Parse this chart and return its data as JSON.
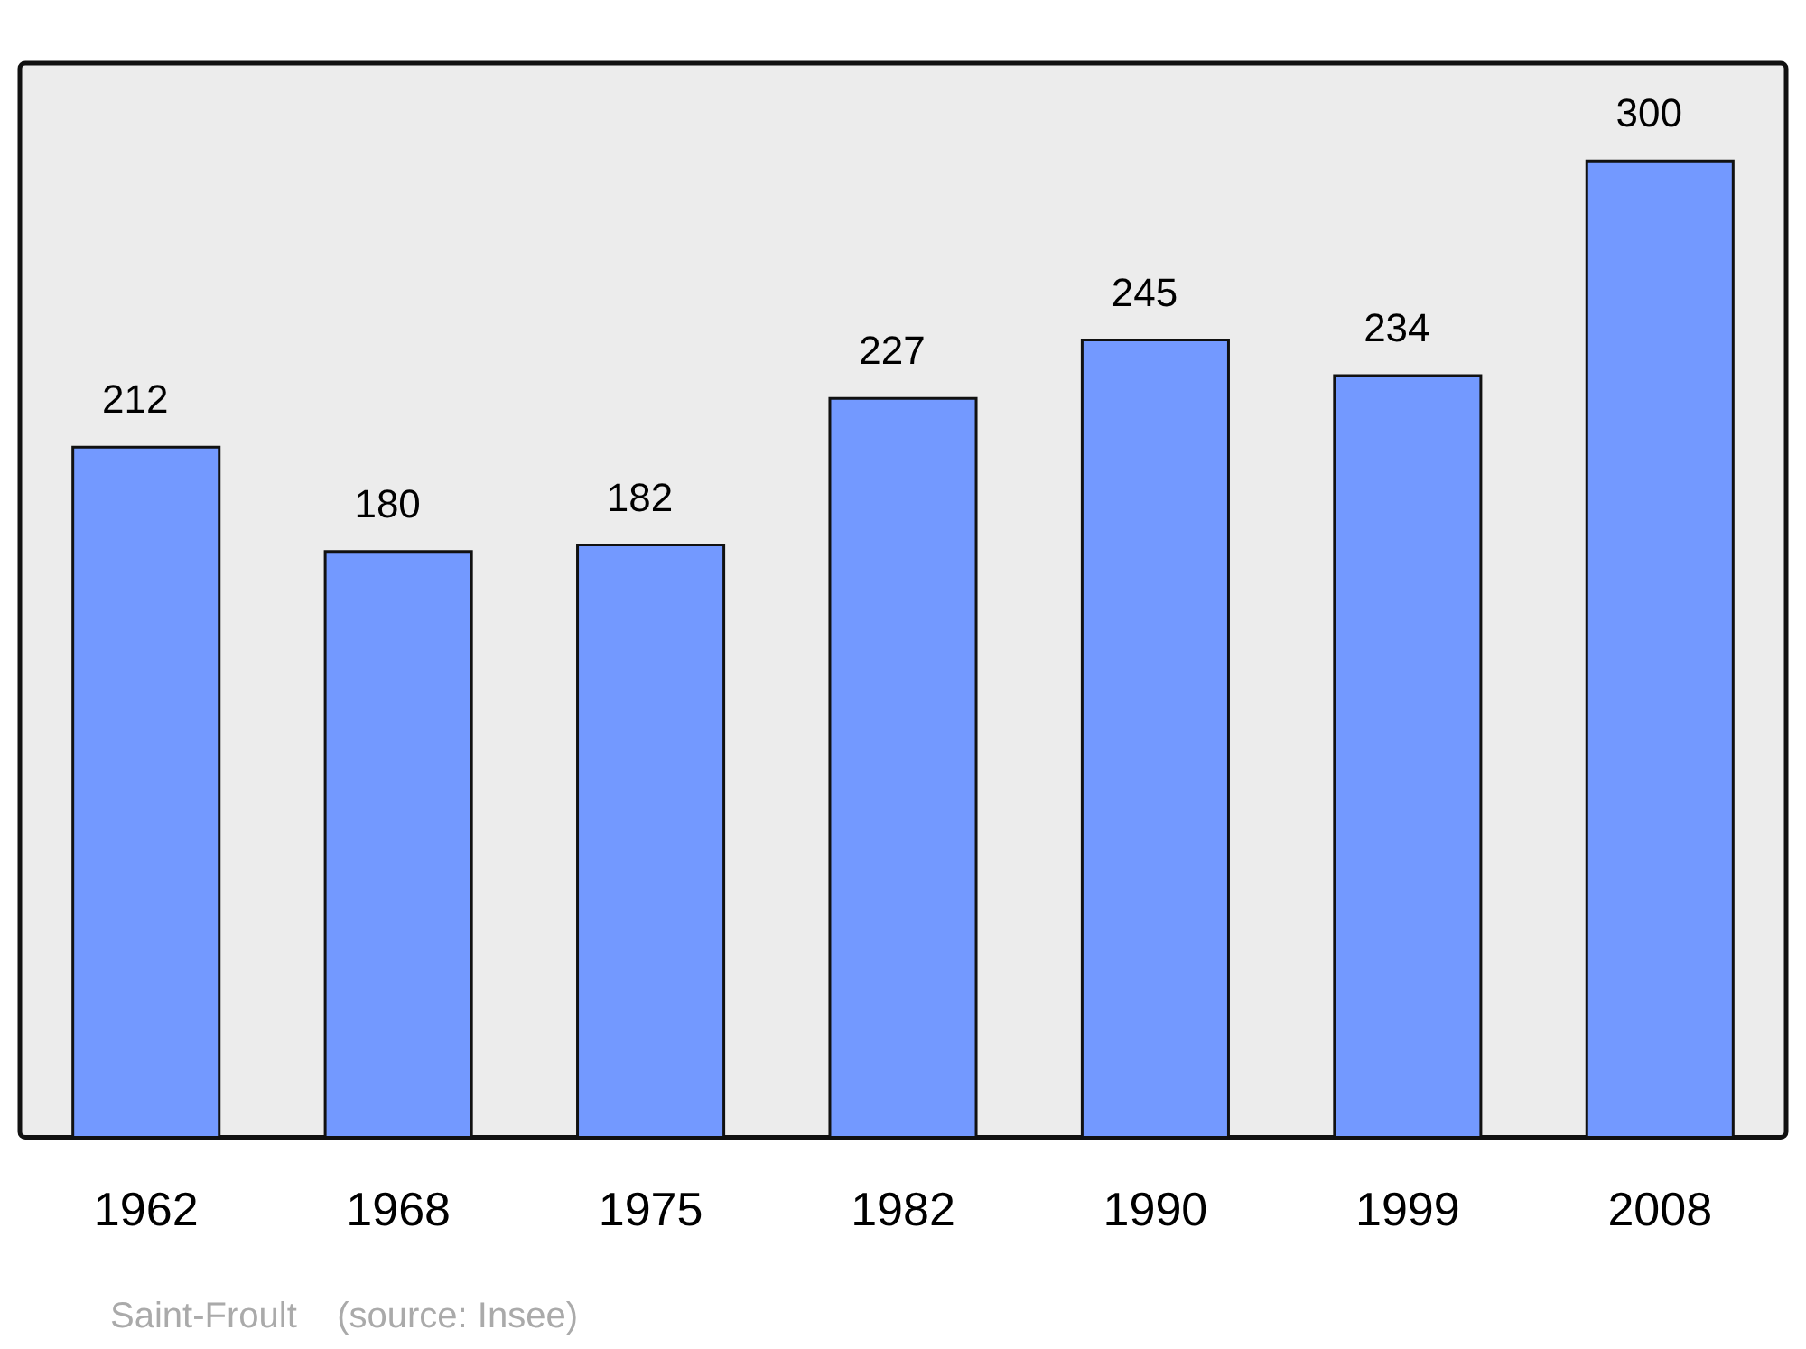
{
  "chart_data": {
    "type": "bar",
    "categories": [
      "1962",
      "1968",
      "1975",
      "1982",
      "1990",
      "1999",
      "2008"
    ],
    "values": [
      212,
      180,
      182,
      227,
      245,
      234,
      300
    ],
    "color": "#7399ff",
    "data_labels": true,
    "annotations": [
      "Saint-Froult    (source: Insee)"
    ]
  }
}
